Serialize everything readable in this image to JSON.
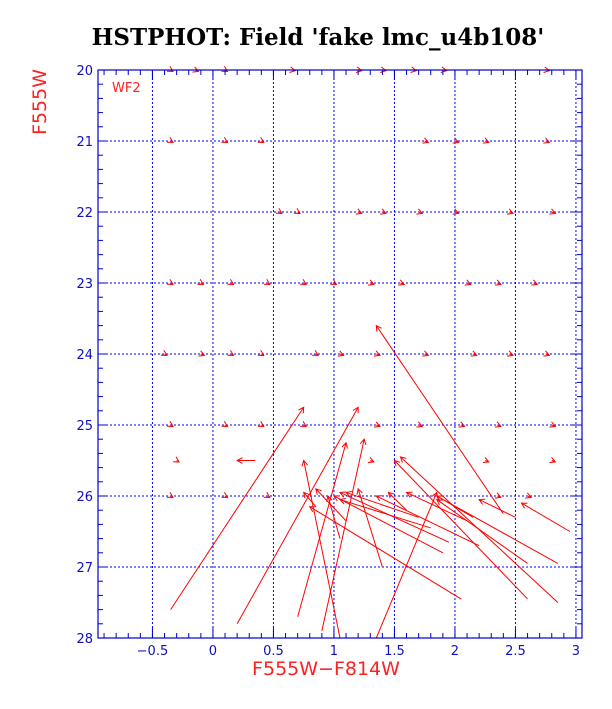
{
  "chart_data": {
    "type": "scatter",
    "title": "HSTPHOT: Field 'fake lmc_u4b108'",
    "xlabel": "F555W−F814W",
    "ylabel": "F555W",
    "panel_label": "WF2",
    "xlim": [
      -0.95,
      3.05
    ],
    "ylim": [
      28,
      20
    ],
    "xticks": [
      {
        "value": -0.5,
        "label": "−0.5"
      },
      {
        "value": 0,
        "label": "0"
      },
      {
        "value": 0.5,
        "label": "0.5"
      },
      {
        "value": 1,
        "label": "1"
      },
      {
        "value": 1.5,
        "label": "1.5"
      },
      {
        "value": 2,
        "label": "2"
      },
      {
        "value": 2.5,
        "label": "2.5"
      },
      {
        "value": 3,
        "label": "3"
      }
    ],
    "yticks": [
      {
        "value": 20,
        "label": "20"
      },
      {
        "value": 21,
        "label": "21"
      },
      {
        "value": 22,
        "label": "22"
      },
      {
        "value": 23,
        "label": "23"
      },
      {
        "value": 24,
        "label": "24"
      },
      {
        "value": 25,
        "label": "25"
      },
      {
        "value": 26,
        "label": "26"
      },
      {
        "value": 27,
        "label": "27"
      },
      {
        "value": 28,
        "label": "28"
      }
    ],
    "grid": true,
    "colors": {
      "grid": "#0000ff",
      "axes": "#0000cc",
      "vectors": "#ff0000",
      "labels": "#ff2020"
    },
    "vectors": [
      {
        "x0": -0.35,
        "y0": 20.0,
        "x1": -0.33,
        "y1": 20.02
      },
      {
        "x0": -0.15,
        "y0": 20.0,
        "x1": -0.12,
        "y1": 20.02
      },
      {
        "x0": 0.1,
        "y0": 20.0,
        "x1": 0.12,
        "y1": 20.02
      },
      {
        "x0": 0.65,
        "y0": 20.0,
        "x1": 0.68,
        "y1": 20.01
      },
      {
        "x0": 1.2,
        "y0": 20.0,
        "x1": 1.23,
        "y1": 20.01
      },
      {
        "x0": 1.4,
        "y0": 20.0,
        "x1": 1.43,
        "y1": 20.01
      },
      {
        "x0": 1.65,
        "y0": 20.0,
        "x1": 1.68,
        "y1": 20.01
      },
      {
        "x0": 1.9,
        "y0": 20.0,
        "x1": 1.93,
        "y1": 20.01
      },
      {
        "x0": 2.75,
        "y0": 20.0,
        "x1": 2.78,
        "y1": 20.01
      },
      {
        "x0": -0.35,
        "y0": 21.0,
        "x1": -0.33,
        "y1": 21.02
      },
      {
        "x0": 0.1,
        "y0": 21.0,
        "x1": 0.12,
        "y1": 21.02
      },
      {
        "x0": 0.4,
        "y0": 21.0,
        "x1": 0.42,
        "y1": 21.02
      },
      {
        "x0": 1.75,
        "y0": 21.0,
        "x1": 1.78,
        "y1": 21.02
      },
      {
        "x0": 2.0,
        "y0": 21.0,
        "x1": 2.03,
        "y1": 21.02
      },
      {
        "x0": 2.25,
        "y0": 21.0,
        "x1": 2.28,
        "y1": 21.02
      },
      {
        "x0": 2.75,
        "y0": 21.0,
        "x1": 2.78,
        "y1": 21.02
      },
      {
        "x0": 0.55,
        "y0": 22.0,
        "x1": 0.57,
        "y1": 22.02
      },
      {
        "x0": 0.7,
        "y0": 22.0,
        "x1": 0.72,
        "y1": 22.02
      },
      {
        "x0": 1.2,
        "y0": 22.0,
        "x1": 1.23,
        "y1": 22.02
      },
      {
        "x0": 1.4,
        "y0": 22.0,
        "x1": 1.43,
        "y1": 22.02
      },
      {
        "x0": 1.7,
        "y0": 22.0,
        "x1": 1.73,
        "y1": 22.02
      },
      {
        "x0": 2.0,
        "y0": 22.0,
        "x1": 2.03,
        "y1": 22.02
      },
      {
        "x0": 2.45,
        "y0": 22.0,
        "x1": 2.48,
        "y1": 22.02
      },
      {
        "x0": 2.8,
        "y0": 22.0,
        "x1": 2.83,
        "y1": 22.02
      },
      {
        "x0": -0.35,
        "y0": 23.0,
        "x1": -0.33,
        "y1": 23.02
      },
      {
        "x0": -0.1,
        "y0": 23.0,
        "x1": -0.08,
        "y1": 23.02
      },
      {
        "x0": 0.15,
        "y0": 23.0,
        "x1": 0.17,
        "y1": 23.02
      },
      {
        "x0": 0.45,
        "y0": 23.0,
        "x1": 0.47,
        "y1": 23.02
      },
      {
        "x0": 0.75,
        "y0": 23.0,
        "x1": 0.77,
        "y1": 23.02
      },
      {
        "x0": 1.0,
        "y0": 23.0,
        "x1": 1.02,
        "y1": 23.02
      },
      {
        "x0": 1.3,
        "y0": 23.0,
        "x1": 1.33,
        "y1": 23.02
      },
      {
        "x0": 1.55,
        "y0": 23.0,
        "x1": 1.58,
        "y1": 23.02
      },
      {
        "x0": 2.1,
        "y0": 23.0,
        "x1": 2.13,
        "y1": 23.02
      },
      {
        "x0": 2.35,
        "y0": 23.0,
        "x1": 2.38,
        "y1": 23.02
      },
      {
        "x0": 2.65,
        "y0": 23.0,
        "x1": 2.68,
        "y1": 23.02
      },
      {
        "x0": -0.4,
        "y0": 24.0,
        "x1": -0.38,
        "y1": 24.02
      },
      {
        "x0": -0.1,
        "y0": 24.0,
        "x1": -0.07,
        "y1": 24.02
      },
      {
        "x0": 0.15,
        "y0": 24.0,
        "x1": 0.17,
        "y1": 24.02
      },
      {
        "x0": 0.4,
        "y0": 24.0,
        "x1": 0.42,
        "y1": 24.02
      },
      {
        "x0": 0.85,
        "y0": 24.0,
        "x1": 0.87,
        "y1": 24.02
      },
      {
        "x0": 1.05,
        "y0": 24.0,
        "x1": 1.08,
        "y1": 24.02
      },
      {
        "x0": 1.35,
        "y0": 24.0,
        "x1": 1.38,
        "y1": 24.02
      },
      {
        "x0": 1.75,
        "y0": 24.0,
        "x1": 1.78,
        "y1": 24.02
      },
      {
        "x0": 2.15,
        "y0": 24.0,
        "x1": 2.18,
        "y1": 24.02
      },
      {
        "x0": 2.45,
        "y0": 24.0,
        "x1": 2.48,
        "y1": 24.02
      },
      {
        "x0": 2.75,
        "y0": 24.0,
        "x1": 2.78,
        "y1": 24.02
      },
      {
        "x0": -0.35,
        "y0": 25.0,
        "x1": -0.33,
        "y1": 25.02
      },
      {
        "x0": 0.1,
        "y0": 25.0,
        "x1": 0.12,
        "y1": 25.02
      },
      {
        "x0": 0.4,
        "y0": 25.0,
        "x1": 0.42,
        "y1": 25.02
      },
      {
        "x0": 0.75,
        "y0": 25.0,
        "x1": 0.77,
        "y1": 25.02
      },
      {
        "x0": 1.35,
        "y0": 25.0,
        "x1": 1.38,
        "y1": 25.02
      },
      {
        "x0": 1.7,
        "y0": 25.0,
        "x1": 1.73,
        "y1": 25.02
      },
      {
        "x0": 2.05,
        "y0": 25.0,
        "x1": 2.08,
        "y1": 25.02
      },
      {
        "x0": 2.35,
        "y0": 25.0,
        "x1": 2.38,
        "y1": 25.02
      },
      {
        "x0": 2.8,
        "y0": 25.0,
        "x1": 2.83,
        "y1": 25.02
      },
      {
        "x0": -0.3,
        "y0": 25.5,
        "x1": -0.28,
        "y1": 25.52
      },
      {
        "x0": 0.35,
        "y0": 25.5,
        "x1": 0.2,
        "y1": 25.5
      },
      {
        "x0": 1.3,
        "y0": 25.5,
        "x1": 1.33,
        "y1": 25.52
      },
      {
        "x0": 2.25,
        "y0": 25.5,
        "x1": 2.28,
        "y1": 25.52
      },
      {
        "x0": 2.8,
        "y0": 25.5,
        "x1": 2.83,
        "y1": 25.52
      },
      {
        "x0": -0.35,
        "y0": 26.0,
        "x1": -0.33,
        "y1": 26.02
      },
      {
        "x0": 0.1,
        "y0": 26.0,
        "x1": 0.12,
        "y1": 26.02
      },
      {
        "x0": 0.45,
        "y0": 26.0,
        "x1": 0.47,
        "y1": 26.02
      },
      {
        "x0": 2.35,
        "y0": 26.0,
        "x1": 2.38,
        "y1": 26.02
      },
      {
        "x0": 2.6,
        "y0": 26.0,
        "x1": 2.63,
        "y1": 26.02
      },
      {
        "x0": -0.35,
        "y0": 27.6,
        "x1": 0.75,
        "y1": 24.75
      },
      {
        "x0": 0.2,
        "y0": 27.8,
        "x1": 1.2,
        "y1": 24.75
      },
      {
        "x0": 0.7,
        "y0": 27.7,
        "x1": 1.1,
        "y1": 25.25
      },
      {
        "x0": 0.9,
        "y0": 27.9,
        "x1": 1.25,
        "y1": 25.2
      },
      {
        "x0": 1.05,
        "y0": 28.0,
        "x1": 0.75,
        "y1": 25.5
      },
      {
        "x0": 1.35,
        "y0": 28.0,
        "x1": 1.85,
        "y1": 25.95
      },
      {
        "x0": 1.4,
        "y0": 27.0,
        "x1": 1.2,
        "y1": 25.9
      },
      {
        "x0": 1.9,
        "y0": 26.8,
        "x1": 1.0,
        "y1": 26.0
      },
      {
        "x0": 2.05,
        "y0": 27.45,
        "x1": 0.8,
        "y1": 26.15
      },
      {
        "x0": 2.6,
        "y0": 27.45,
        "x1": 1.5,
        "y1": 25.5
      },
      {
        "x0": 2.85,
        "y0": 27.5,
        "x1": 1.55,
        "y1": 25.45
      },
      {
        "x0": 2.85,
        "y0": 26.95,
        "x1": 1.85,
        "y1": 26.0
      },
      {
        "x0": 2.4,
        "y0": 26.25,
        "x1": 1.35,
        "y1": 23.6
      },
      {
        "x0": 2.6,
        "y0": 26.95,
        "x1": 1.85,
        "y1": 26.05
      },
      {
        "x0": 2.95,
        "y0": 26.5,
        "x1": 2.55,
        "y1": 26.1
      },
      {
        "x0": 2.2,
        "y0": 26.7,
        "x1": 1.35,
        "y1": 26.0
      },
      {
        "x0": 1.95,
        "y0": 26.65,
        "x1": 1.05,
        "y1": 25.95
      },
      {
        "x0": 1.8,
        "y0": 26.45,
        "x1": 1.05,
        "y1": 26.05
      },
      {
        "x0": 1.7,
        "y0": 26.3,
        "x1": 1.1,
        "y1": 25.95
      },
      {
        "x0": 1.1,
        "y0": 26.35,
        "x1": 0.85,
        "y1": 25.9
      },
      {
        "x0": 1.05,
        "y0": 26.6,
        "x1": 0.95,
        "y1": 26.0
      },
      {
        "x0": 0.85,
        "y0": 26.15,
        "x1": 0.75,
        "y1": 25.95
      },
      {
        "x0": 2.15,
        "y0": 26.3,
        "x1": 1.85,
        "y1": 26.0
      },
      {
        "x0": 2.1,
        "y0": 26.35,
        "x1": 1.6,
        "y1": 25.95
      },
      {
        "x0": 1.6,
        "y0": 26.2,
        "x1": 1.45,
        "y1": 25.95
      },
      {
        "x0": 2.5,
        "y0": 26.3,
        "x1": 2.2,
        "y1": 26.05
      }
    ]
  }
}
